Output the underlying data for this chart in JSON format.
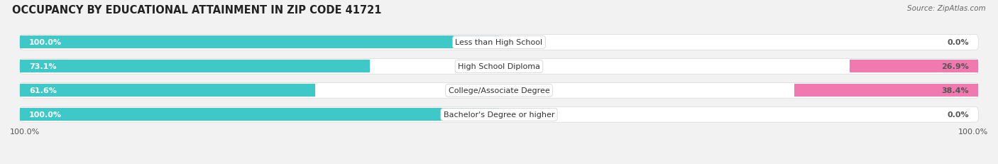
{
  "title": "OCCUPANCY BY EDUCATIONAL ATTAINMENT IN ZIP CODE 41721",
  "source": "Source: ZipAtlas.com",
  "categories": [
    "Less than High School",
    "High School Diploma",
    "College/Associate Degree",
    "Bachelor's Degree or higher"
  ],
  "owner_pct": [
    100.0,
    73.1,
    61.6,
    100.0
  ],
  "renter_pct": [
    0.0,
    26.9,
    38.4,
    0.0
  ],
  "owner_color": "#3ec8c8",
  "renter_color": "#f07ab0",
  "renter_color_small": "#f5b8d0",
  "bg_color": "#f2f2f2",
  "bar_bg_color": "#e8e8e8",
  "bar_height": 0.62,
  "title_fontsize": 10.5,
  "label_fontsize": 8.0,
  "tick_fontsize": 8.0,
  "legend_fontsize": 8.5,
  "x_left_label": "100.0%",
  "x_right_label": "100.0%"
}
